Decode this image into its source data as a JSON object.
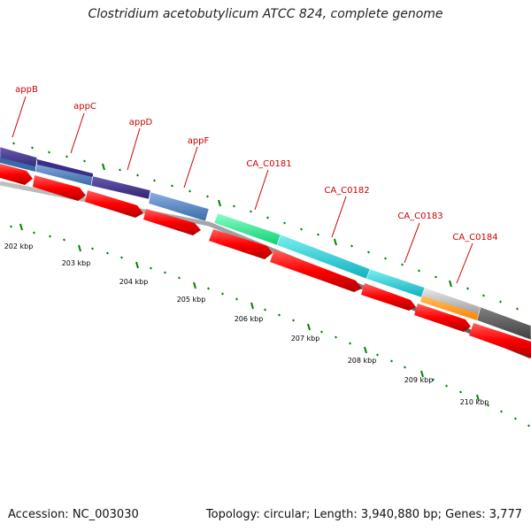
{
  "title": "Clostridium acetobutylicum ATCC 824, complete genome",
  "footer": {
    "accession": "Accession: NC_003030",
    "stats": "Topology: circular; Length: 3,940,880 bp; Genes: 3,777"
  },
  "colors": {
    "label": "#cc0000",
    "tick": "#008000",
    "cds": "#ff0000",
    "backbone": "#808080"
  },
  "gene_labels": [
    "appB",
    "appC",
    "appD",
    "appF",
    "CA_C0181",
    "CA_C0182",
    "CA_C0183",
    "CA_C0184"
  ],
  "kbp_labels": [
    "202 kbp",
    "203 kbp",
    "204 kbp",
    "205 kbp",
    "206 kbp",
    "207 kbp",
    "208 kbp",
    "209 kbp",
    "210 kbp"
  ]
}
